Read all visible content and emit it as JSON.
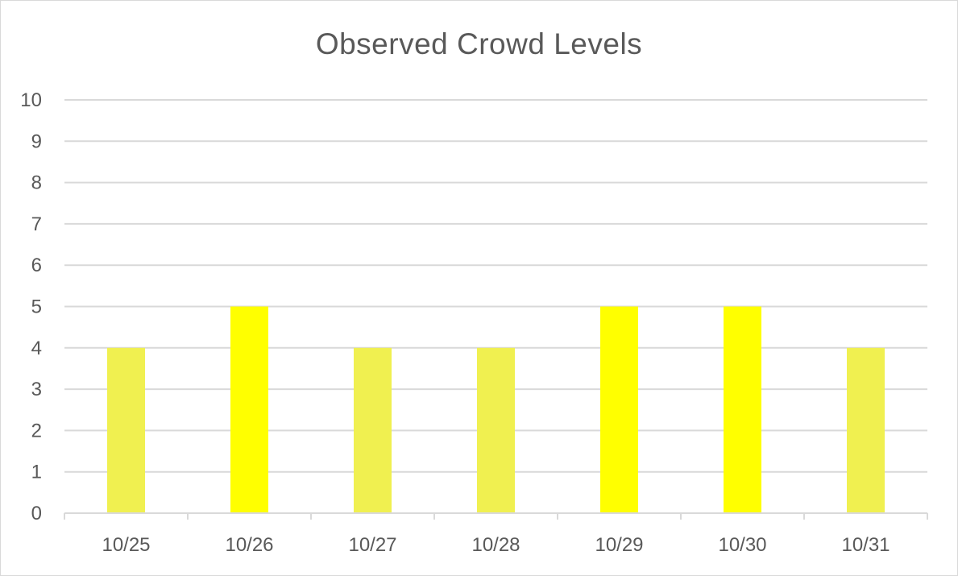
{
  "chart_data": {
    "type": "bar",
    "title": "Observed Crowd Levels",
    "xlabel": "",
    "ylabel": "",
    "categories": [
      "10/25",
      "10/26",
      "10/27",
      "10/28",
      "10/29",
      "10/30",
      "10/31"
    ],
    "values": [
      4,
      5,
      4,
      4,
      5,
      5,
      4
    ],
    "bar_colors": [
      "#f0f050",
      "#ffff00",
      "#f0f050",
      "#f0f050",
      "#ffff00",
      "#ffff00",
      "#f0f050"
    ],
    "ylim": [
      0,
      10
    ],
    "yticks": [
      "0",
      "1",
      "2",
      "3",
      "4",
      "5",
      "6",
      "7",
      "8",
      "9",
      "10"
    ],
    "grid": true,
    "legend": "none"
  },
  "colors": {
    "gridline": "#d9d9d9",
    "axis": "#d9d9d9",
    "text": "#595959"
  }
}
